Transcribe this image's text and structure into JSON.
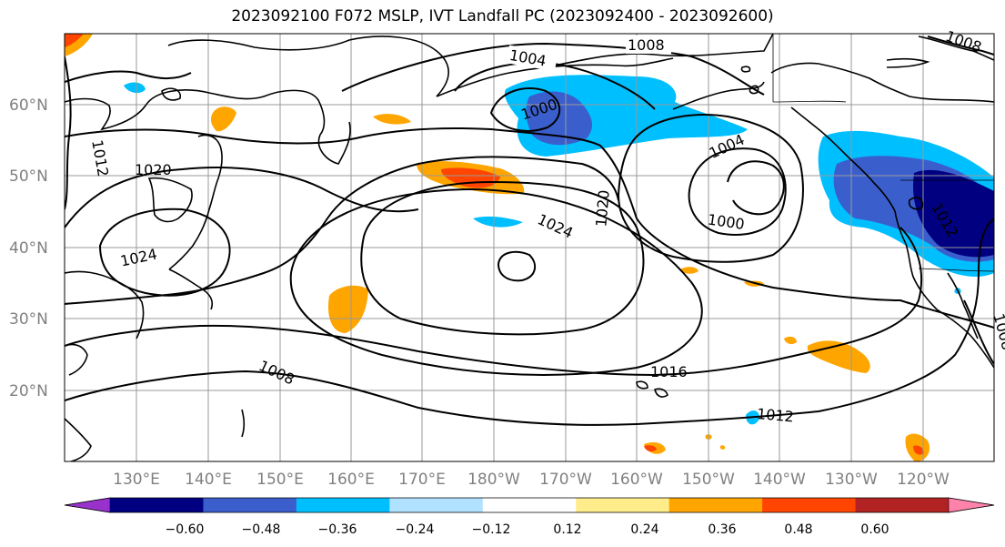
{
  "title": "2023092100 F072 MSLP, IVT Landfall PC (2023092400 - 2023092600)",
  "map": {
    "lon_labels": [
      "130°E",
      "140°E",
      "150°E",
      "160°E",
      "170°E",
      "180°W",
      "170°W",
      "160°W",
      "150°W",
      "140°W",
      "130°W",
      "120°W"
    ],
    "lat_labels": [
      "60°N",
      "50°N",
      "40°N",
      "30°N",
      "20°N"
    ],
    "isobar_labels": [
      "1008",
      "1004",
      "1000",
      "1004",
      "1000",
      "1012",
      "1020",
      "1024",
      "1020",
      "1024",
      "1016",
      "1008",
      "1012",
      "1008",
      "1012",
      "1008"
    ]
  },
  "colorbar": {
    "tick_labels": [
      "−0.60",
      "−0.48",
      "−0.36",
      "−0.24",
      "−0.12",
      "0.12",
      "0.24",
      "0.36",
      "0.48",
      "0.60"
    ],
    "colors": [
      "#9932cc",
      "#000080",
      "#3a5fcd",
      "#00bfff",
      "#b0e2ff",
      "#ffffff",
      "#ffec8b",
      "#ffa500",
      "#ff4500",
      "#b22222",
      "#ff82ab"
    ]
  }
}
